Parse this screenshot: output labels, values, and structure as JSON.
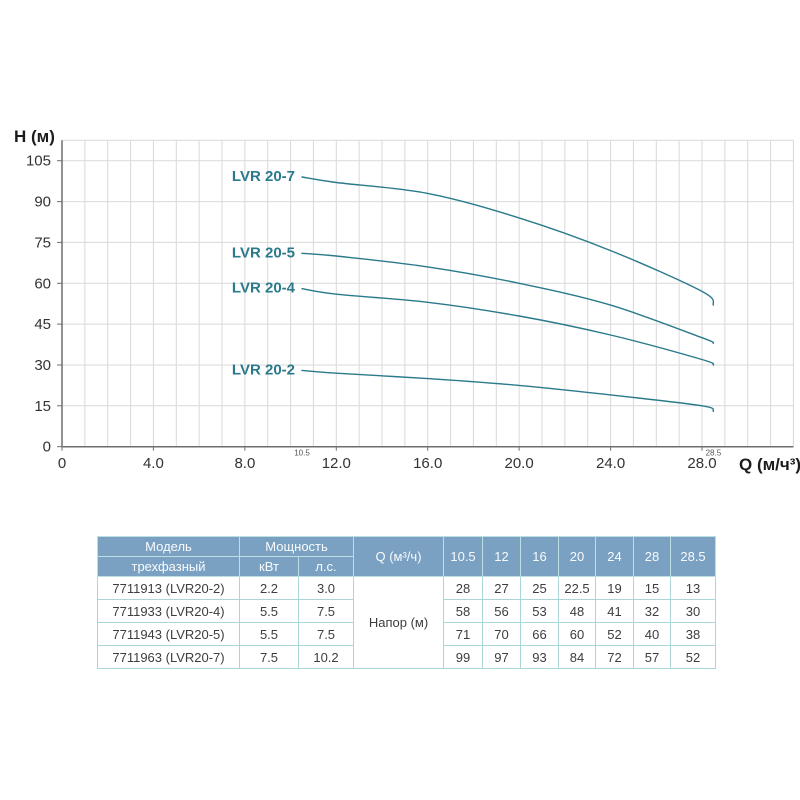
{
  "page": {
    "background": "#ffffff"
  },
  "chart_data": {
    "type": "line",
    "title": "",
    "ylabel": "H (м)",
    "xlabel": "Q (м/ч³)",
    "x": [
      10.5,
      12,
      16,
      20,
      24,
      28,
      28.5
    ],
    "series": [
      {
        "name": "LVR 20-7",
        "values": [
          99,
          97,
          93,
          84,
          72,
          57,
          52
        ]
      },
      {
        "name": "LVR 20-5",
        "values": [
          71,
          70,
          66,
          60,
          52,
          40,
          38
        ]
      },
      {
        "name": "LVR 20-4",
        "values": [
          58,
          56,
          53,
          48,
          41,
          32,
          30
        ]
      },
      {
        "name": "LVR 20-2",
        "values": [
          28,
          27,
          25,
          22.5,
          19,
          15,
          13
        ]
      }
    ],
    "xlim": [
      0,
      32
    ],
    "ylim": [
      0,
      112.5
    ],
    "grid": true,
    "x_grid_step": 1,
    "y_grid_step": 15,
    "x_ticks": [
      {
        "v": 0,
        "label": "0"
      },
      {
        "v": 4,
        "label": "4.0"
      },
      {
        "v": 8,
        "label": "8.0"
      },
      {
        "v": 12,
        "label": "12.0"
      },
      {
        "v": 16,
        "label": "16.0"
      },
      {
        "v": 20,
        "label": "20.0"
      },
      {
        "v": 24,
        "label": "24.0"
      },
      {
        "v": 28,
        "label": "28.0"
      }
    ],
    "y_ticks": [
      {
        "v": 0,
        "label": "0"
      },
      {
        "v": 15,
        "label": "15"
      },
      {
        "v": 30,
        "label": "30"
      },
      {
        "v": 45,
        "label": "45"
      },
      {
        "v": 60,
        "label": "60"
      },
      {
        "v": 75,
        "label": "75"
      },
      {
        "v": 90,
        "label": "90"
      },
      {
        "v": 105,
        "label": "105"
      }
    ],
    "range_markers": [
      {
        "v": 10.5,
        "label": "10.5"
      },
      {
        "v": 28.5,
        "label": "28.5"
      }
    ],
    "legend_position": "labels-at-line-start",
    "colors": {
      "line": "#2a7a8c",
      "curve_label": "#2a7a8c",
      "grid": "#d9d9d9",
      "axis": "#6e6e6e",
      "tick_text": "#333333",
      "title_text": "#1c1c1c"
    }
  },
  "table": {
    "headers": {
      "model": "Модель",
      "model_sub": "трехфазный",
      "power": "Мощность",
      "power_kw": "кВт",
      "power_hp": "л.с.",
      "flow": "Q (м³/ч)",
      "flow_values": [
        "10.5",
        "12",
        "16",
        "20",
        "24",
        "28",
        "28.5"
      ],
      "head": "Напор (м)"
    },
    "rows": [
      {
        "model": "7711913 (LVR20-2)",
        "kw": "2.2",
        "hp": "3.0",
        "head": [
          "28",
          "27",
          "25",
          "22.5",
          "19",
          "15",
          "13"
        ]
      },
      {
        "model": "7711933 (LVR20-4)",
        "kw": "5.5",
        "hp": "7.5",
        "head": [
          "58",
          "56",
          "53",
          "48",
          "41",
          "32",
          "30"
        ]
      },
      {
        "model": "7711943 (LVR20-5)",
        "kw": "5.5",
        "hp": "7.5",
        "head": [
          "71",
          "70",
          "66",
          "60",
          "52",
          "40",
          "38"
        ]
      },
      {
        "model": "7711963 (LVR20-7)",
        "kw": "7.5",
        "hp": "10.2",
        "head": [
          "99",
          "97",
          "93",
          "84",
          "72",
          "57",
          "52"
        ]
      }
    ],
    "colors": {
      "header_bg": "#7ba1c2",
      "header_text": "#f8fbfd",
      "body_text": "#3d3d3d",
      "border": "#abd6d8",
      "header_border": "#bcdfe3"
    }
  }
}
